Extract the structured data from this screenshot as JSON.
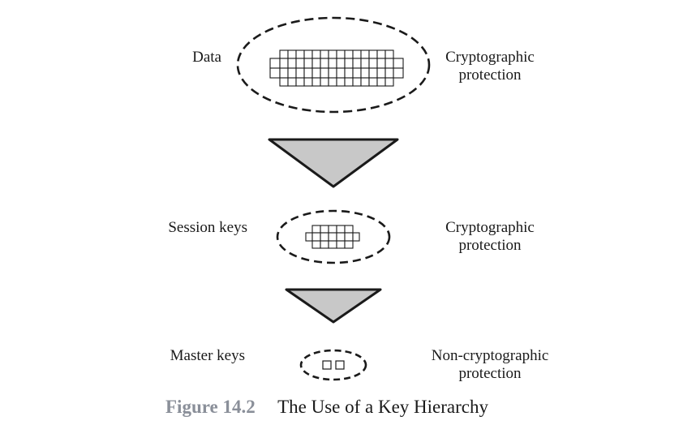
{
  "rows": [
    {
      "label": "Data",
      "protection": [
        "Cryptographic",
        "protection"
      ]
    },
    {
      "label": "Session keys",
      "protection": [
        "Cryptographic",
        "protection"
      ]
    },
    {
      "label": "Master keys",
      "protection": [
        "Non-cryptographic",
        "protection"
      ]
    }
  ],
  "caption": {
    "number": "Figure 14.2",
    "title": "The Use of a Key Hierarchy"
  },
  "colors": {
    "triangle_fill": "#c8c8c8",
    "stroke": "#1a1a1a",
    "caption_number": "#8a8f99"
  }
}
